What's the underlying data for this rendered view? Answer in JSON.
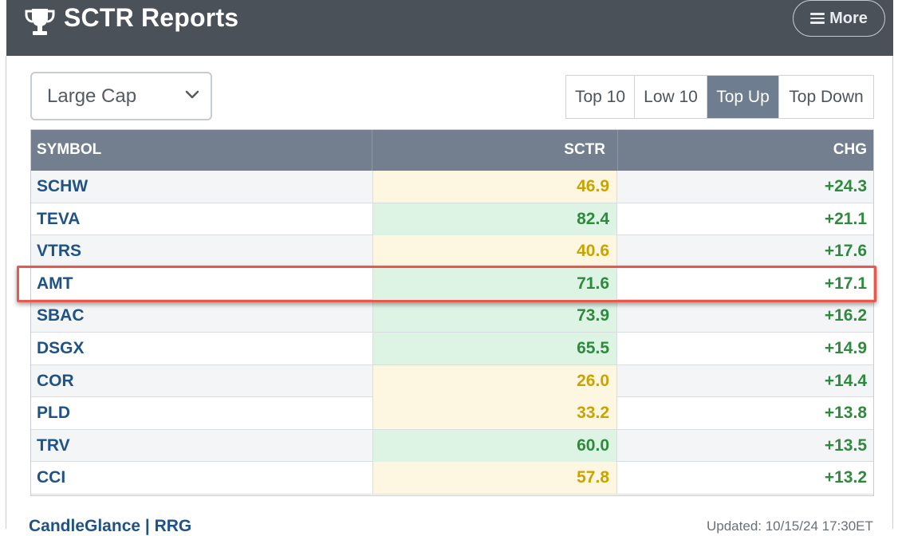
{
  "header": {
    "title": "SCTR Reports",
    "more_label": "More"
  },
  "filter": {
    "selected": "Large Cap"
  },
  "tabs": [
    {
      "label": "Top 10",
      "active": false
    },
    {
      "label": "Low 10",
      "active": false
    },
    {
      "label": "Top Up",
      "active": true
    },
    {
      "label": "Top Down",
      "active": false
    }
  ],
  "table": {
    "headers": {
      "symbol": "SYMBOL",
      "sctr": "SCTR",
      "chg": "CHG"
    },
    "rows": [
      {
        "symbol": "SCHW",
        "sctr": "46.9",
        "chg": "+24.3",
        "level": "mid"
      },
      {
        "symbol": "TEVA",
        "sctr": "82.4",
        "chg": "+21.1",
        "level": "high"
      },
      {
        "symbol": "VTRS",
        "sctr": "40.6",
        "chg": "+17.6",
        "level": "mid"
      },
      {
        "symbol": "AMT",
        "sctr": "71.6",
        "chg": "+17.1",
        "level": "high",
        "highlighted": true
      },
      {
        "symbol": "SBAC",
        "sctr": "73.9",
        "chg": "+16.2",
        "level": "high"
      },
      {
        "symbol": "DSGX",
        "sctr": "65.5",
        "chg": "+14.9",
        "level": "high"
      },
      {
        "symbol": "COR",
        "sctr": "26.0",
        "chg": "+14.4",
        "level": "mid"
      },
      {
        "symbol": "PLD",
        "sctr": "33.2",
        "chg": "+13.8",
        "level": "mid"
      },
      {
        "symbol": "TRV",
        "sctr": "60.0",
        "chg": "+13.5",
        "level": "high"
      },
      {
        "symbol": "CCI",
        "sctr": "57.8",
        "chg": "+13.2",
        "level": "mid"
      }
    ]
  },
  "footer": {
    "links": "CandleGlance | RRG",
    "updated": "Updated: 10/15/24 17:30ET"
  },
  "colors": {
    "header_bg": "#4a5159",
    "high_bg": "#ddf3e4",
    "high_text": "#2e8b3e",
    "mid_bg": "#fdf6e0",
    "mid_text": "#c9a400",
    "highlight": "#e8584d"
  }
}
